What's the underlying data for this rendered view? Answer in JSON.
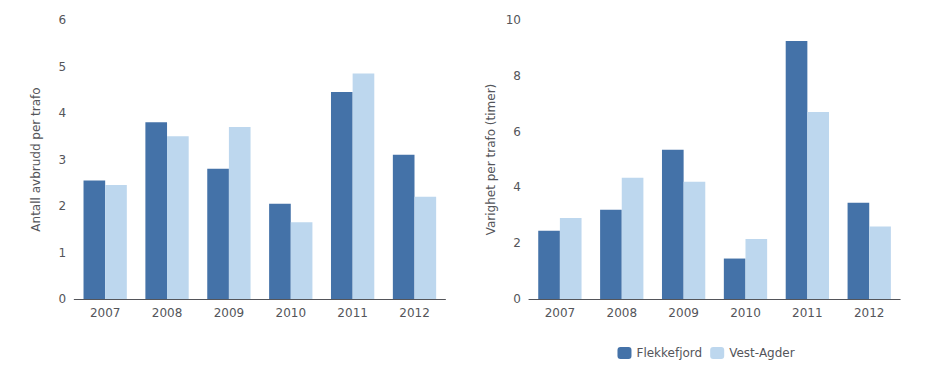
{
  "chart_data": [
    {
      "type": "bar",
      "categories": [
        "2007",
        "2008",
        "2009",
        "2010",
        "2011",
        "2012"
      ],
      "ylabel": "Antall avbrudd per trafo",
      "series": [
        {
          "name": "Flekkefjord",
          "color": "#4472A8",
          "values": [
            2.55,
            3.8,
            2.8,
            2.05,
            4.45,
            3.1
          ]
        },
        {
          "name": "Vest-Agder",
          "color": "#BDD7EE",
          "values": [
            2.45,
            3.5,
            3.7,
            1.65,
            4.85,
            2.2
          ]
        }
      ],
      "ylim": [
        0,
        6
      ],
      "yticks": [
        0,
        1,
        2,
        3,
        4,
        5,
        6
      ],
      "grid": false
    },
    {
      "type": "bar",
      "categories": [
        "2007",
        "2008",
        "2009",
        "2010",
        "2011",
        "2012"
      ],
      "ylabel": "Varighet per trafo (timer)",
      "series": [
        {
          "name": "Flekkefjord",
          "color": "#4472A8",
          "values": [
            2.45,
            3.2,
            5.35,
            1.45,
            9.25,
            3.45
          ]
        },
        {
          "name": "Vest-Agder",
          "color": "#BDD7EE",
          "values": [
            2.9,
            4.35,
            4.2,
            2.15,
            6.7,
            2.6
          ]
        }
      ],
      "ylim": [
        0,
        10
      ],
      "yticks": [
        0,
        2,
        4,
        6,
        8,
        10
      ],
      "grid": false,
      "legend": "bottom"
    }
  ]
}
